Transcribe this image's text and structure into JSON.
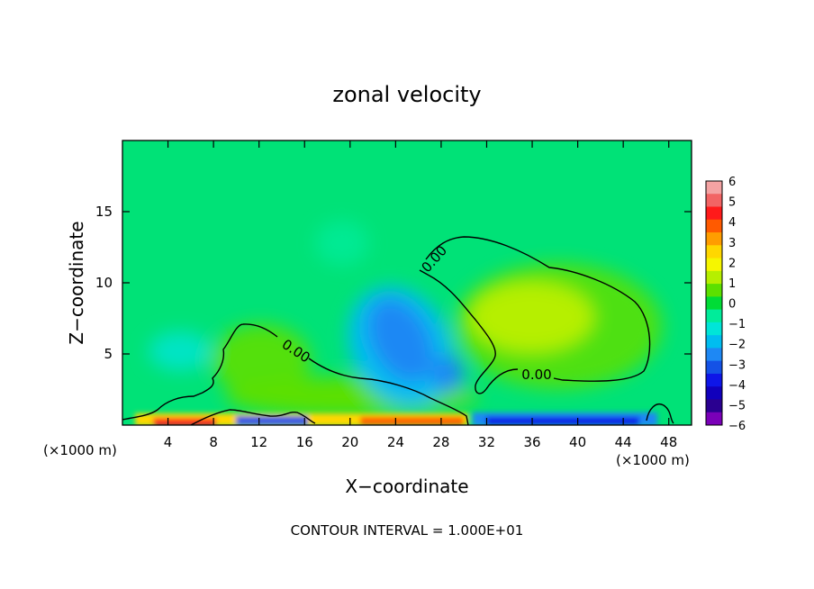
{
  "chart_data": {
    "type": "heatmap",
    "title": "zonal velocity",
    "xlabel": "X−coordinate",
    "ylabel": "Z−coordinate",
    "x_unit_label": "(×1000 m)",
    "footer": "CONTOUR INTERVAL = 1.000E+01",
    "xlim": [
      0,
      50
    ],
    "ylim": [
      0,
      20
    ],
    "x_ticks": [
      4,
      8,
      12,
      16,
      20,
      24,
      28,
      32,
      36,
      40,
      44,
      48
    ],
    "y_ticks": [
      5,
      10,
      15
    ],
    "contour_label": "0.00",
    "colorbar": {
      "ticks": [
        "6",
        "5",
        "4",
        "3",
        "2",
        "1",
        "0",
        "−1",
        "−2",
        "−3",
        "−4",
        "−5",
        "−6"
      ],
      "colors": [
        "#f4a3a3",
        "#f26464",
        "#ff1a1a",
        "#ff5a00",
        "#ff9d00",
        "#ffd700",
        "#f6f600",
        "#b6ef00",
        "#5ce000",
        "#00dc36",
        "#00ec9a",
        "#00e5d8",
        "#00bdf0",
        "#1e88f4",
        "#1452e6",
        "#0e16e8",
        "#1100bc",
        "#2a0090",
        "#7a00b8"
      ]
    },
    "features": [
      {
        "name": "upper-positive-cell",
        "cx": 36,
        "cz": 7.5,
        "rx": 7,
        "rz": 3.5,
        "value": 1.2
      },
      {
        "name": "negative-jet-core",
        "cx": 25,
        "cz": 6.5,
        "rx": 2.5,
        "rz": 2.4,
        "value": -3.3
      },
      {
        "name": "negative-jet-lower",
        "cx": 28.5,
        "cz": 3.2,
        "rx": 1.4,
        "rz": 1.1,
        "value": -3.0
      },
      {
        "name": "left-negative-patch",
        "cx": 5,
        "cz": 5,
        "rx": 2.5,
        "rz": 1.6,
        "value": -1.6
      },
      {
        "name": "mid-negative-patch",
        "cx": 19,
        "cz": 12,
        "rx": 2.4,
        "rz": 2.0,
        "value": -1.0
      },
      {
        "name": "left-positive-lobe",
        "cx": 12,
        "cz": 4.5,
        "rx": 3.5,
        "rz": 2.5,
        "value": 0.8
      },
      {
        "name": "low-positive-band",
        "cx": 18,
        "cz": 2.2,
        "rx": 10,
        "rz": 1.4,
        "value": 0.9
      }
    ]
  }
}
